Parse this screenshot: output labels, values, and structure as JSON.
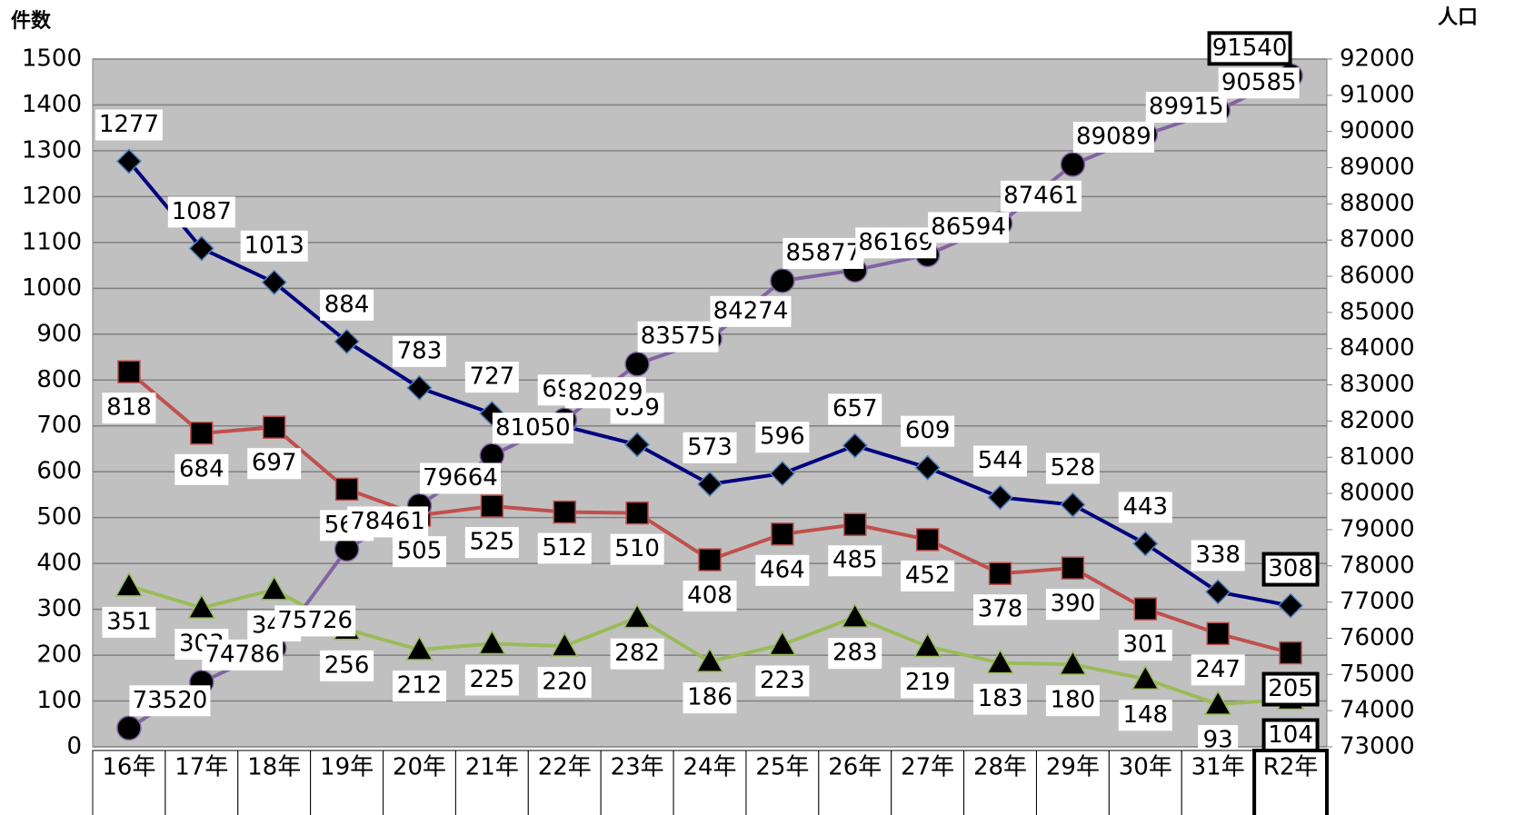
{
  "chart_data": {
    "type": "line",
    "y_label": "件数",
    "y2_label": "人口",
    "categories": [
      "16年",
      "17年",
      "18年",
      "19年",
      "20年",
      "21年",
      "22年",
      "23年",
      "24年",
      "25年",
      "26年",
      "27年",
      "28年",
      "29年",
      "30年",
      "31年",
      "R2年"
    ],
    "ylim": [
      0,
      1500
    ],
    "yticks": [
      0,
      100,
      200,
      300,
      400,
      500,
      600,
      700,
      800,
      900,
      1000,
      1100,
      1200,
      1300,
      1400,
      1500
    ],
    "y2lim": [
      73000,
      92000
    ],
    "y2ticks": [
      73000,
      74000,
      75000,
      76000,
      77000,
      78000,
      79000,
      80000,
      81000,
      82000,
      83000,
      84000,
      85000,
      86000,
      87000,
      88000,
      89000,
      90000,
      91000,
      92000
    ],
    "grid": true,
    "series": [
      {
        "color": "#000080",
        "marker": "diamond",
        "values": [
          1277,
          1087,
          1013,
          884,
          783,
          727,
          699,
          659,
          573,
          596,
          657,
          609,
          544,
          528,
          443,
          338,
          308
        ]
      },
      {
        "color": "#c0504d",
        "marker": "square",
        "values": [
          818,
          684,
          697,
          562,
          505,
          525,
          512,
          510,
          408,
          464,
          485,
          452,
          378,
          390,
          301,
          247,
          205
        ]
      },
      {
        "color": "#9bbb59",
        "marker": "triangle",
        "values": [
          351,
          303,
          343,
          256,
          212,
          225,
          220,
          282,
          186,
          223,
          283,
          219,
          183,
          180,
          148,
          93,
          104
        ]
      },
      {
        "color": "#8064a2",
        "marker": "circle",
        "axis": "y2",
        "values": [
          73520,
          74786,
          75726,
          78461,
          79664,
          81050,
          82029,
          83575,
          84274,
          85877,
          86169,
          86594,
          87461,
          89089,
          89915,
          90585,
          91540
        ]
      }
    ]
  }
}
